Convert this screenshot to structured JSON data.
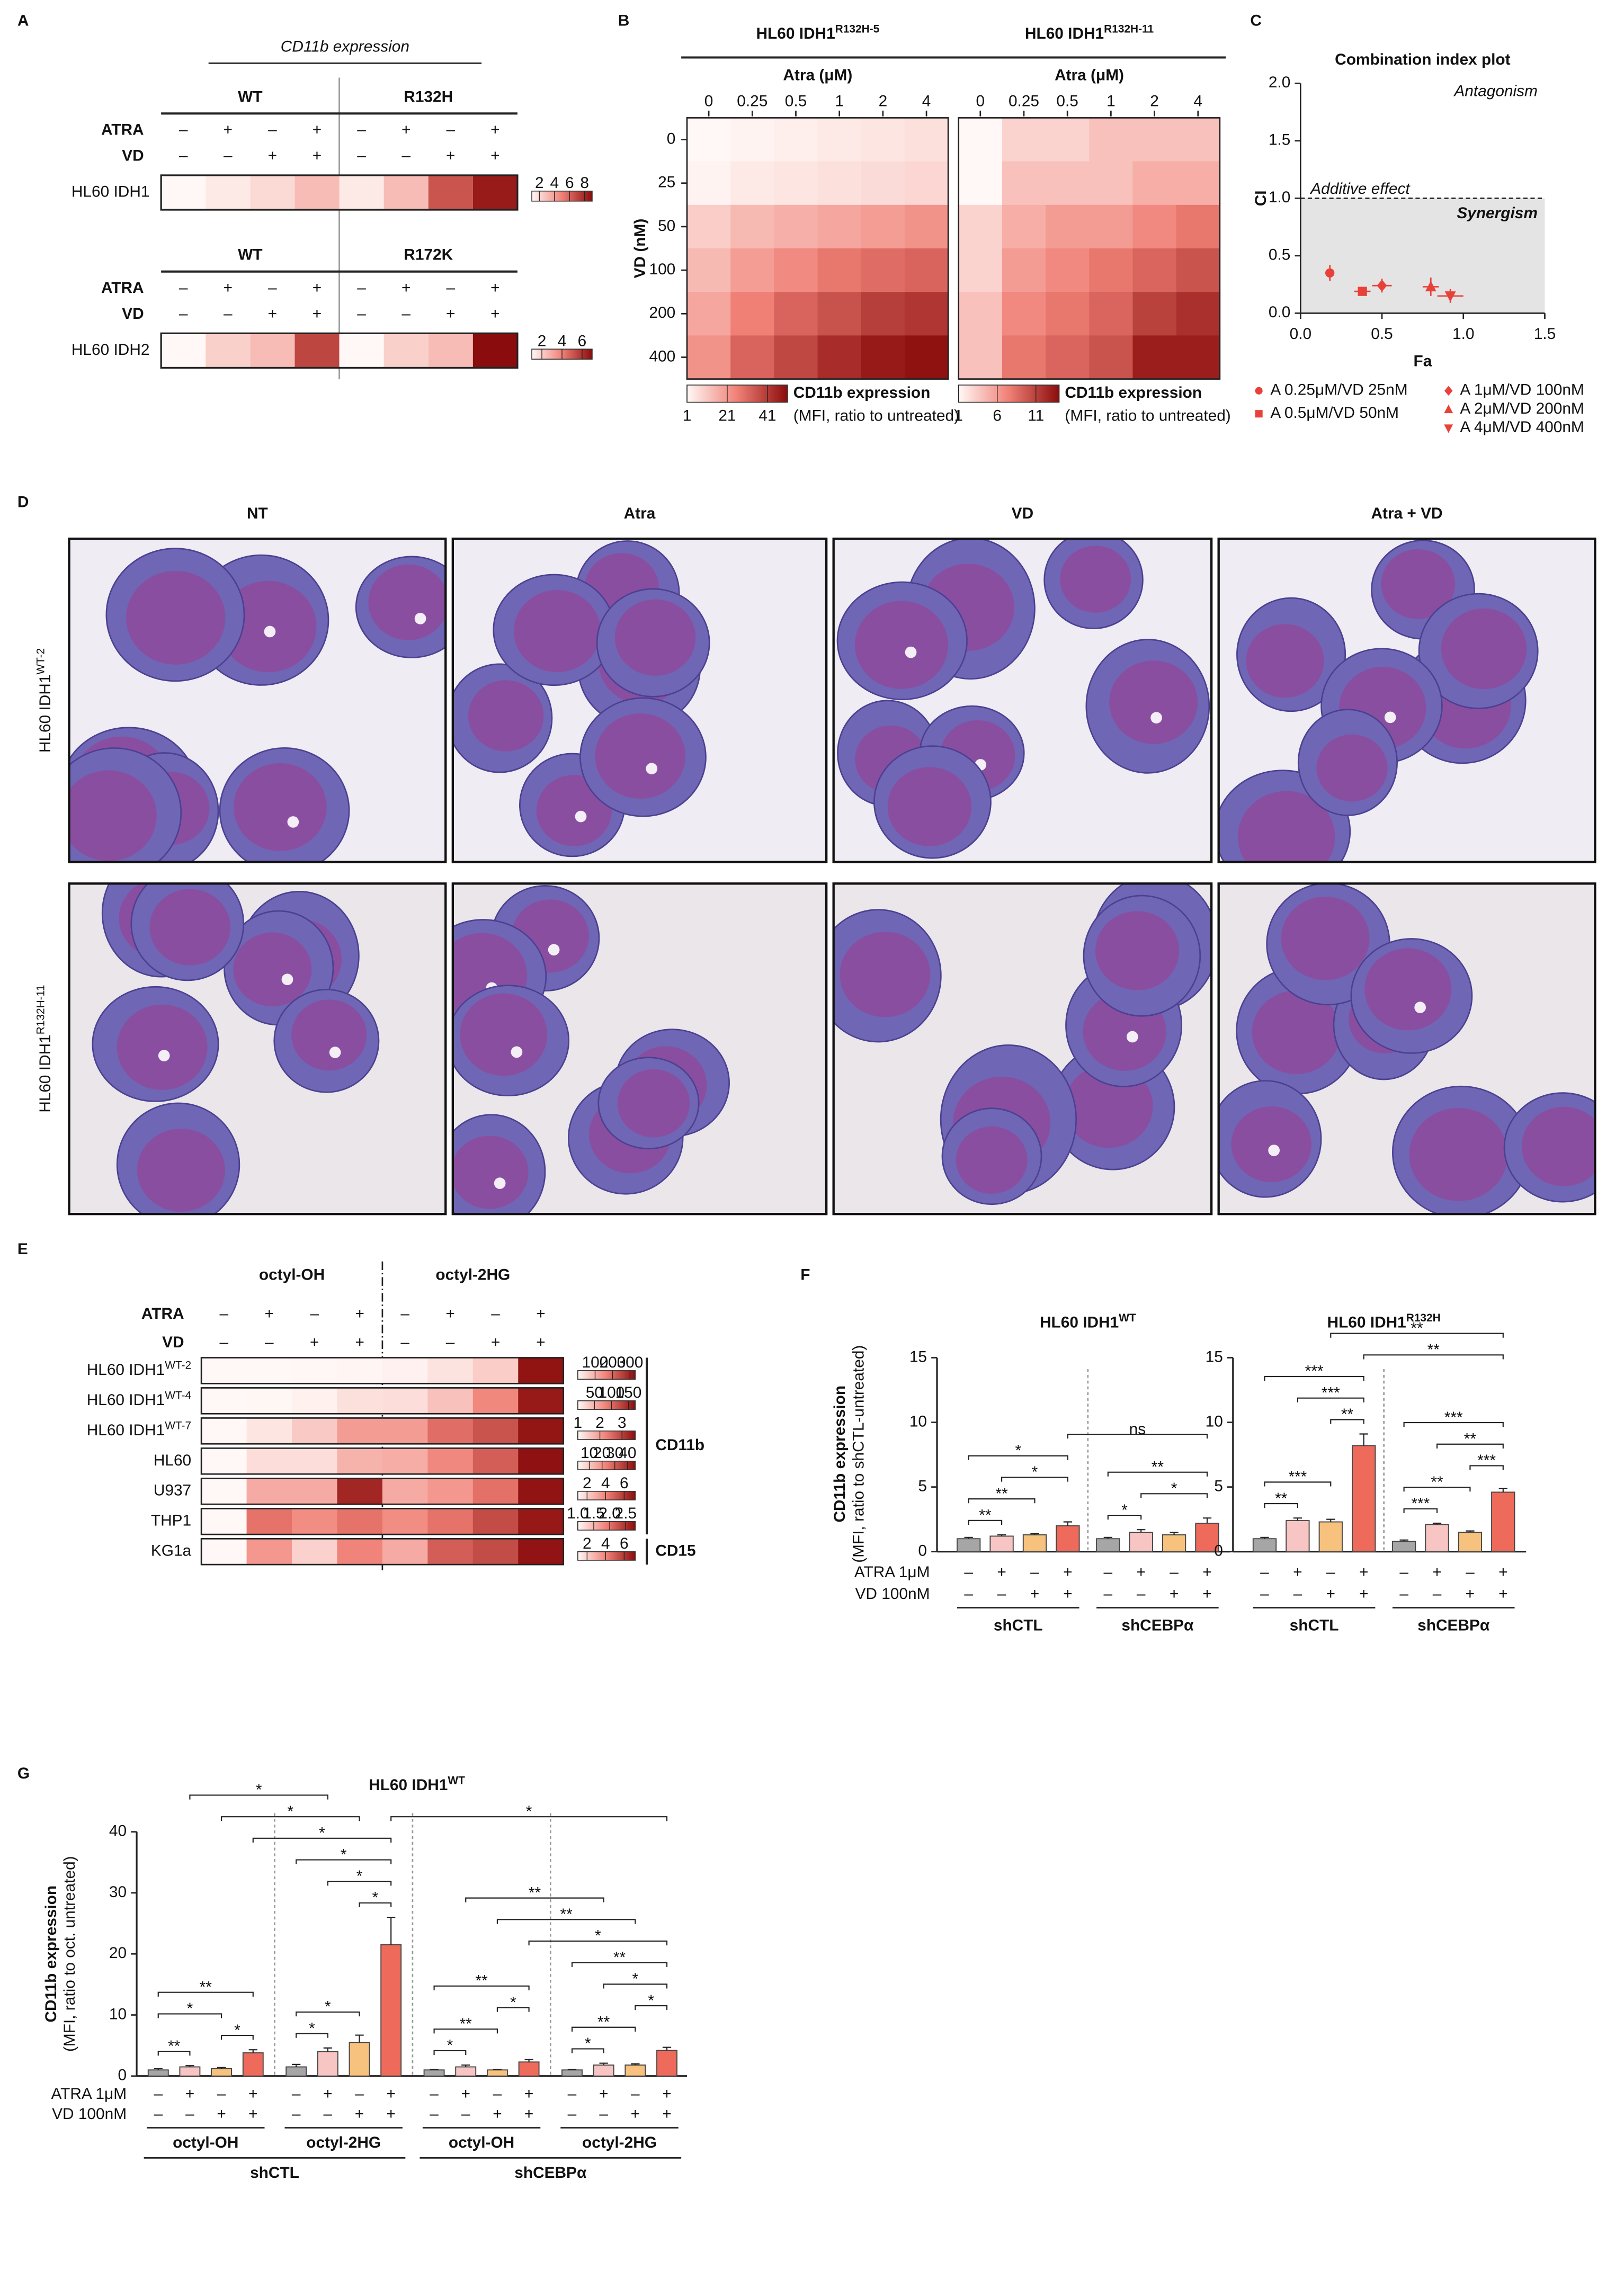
{
  "panel_letters": [
    "A",
    "B",
    "C",
    "D",
    "E",
    "F",
    "G"
  ],
  "panel_A": {
    "title": "CD11b expression",
    "blocks": [
      {
        "groups": [
          "WT",
          "R132H"
        ],
        "treatments": [
          {
            "label": "ATRA",
            "signs": [
              "–",
              "+",
              "–",
              "+",
              "–",
              "+",
              "–",
              "+"
            ]
          },
          {
            "label": "VD",
            "signs": [
              "–",
              "–",
              "+",
              "+",
              "–",
              "–",
              "+",
              "+"
            ]
          }
        ],
        "row_label": "HL60 IDH1",
        "values": [
          1,
          1.5,
          2,
          3,
          1.5,
          3,
          6.5,
          8.5
        ],
        "lim": [
          1,
          9
        ],
        "ticks": [
          2,
          4,
          6,
          8
        ]
      },
      {
        "groups": [
          "WT",
          "R172K"
        ],
        "treatments": [
          {
            "label": "ATRA",
            "signs": [
              "–",
              "+",
              "–",
              "+",
              "–",
              "+",
              "–",
              "+"
            ]
          },
          {
            "label": "VD",
            "signs": [
              "–",
              "–",
              "+",
              "+",
              "–",
              "–",
              "+",
              "+"
            ]
          }
        ],
        "row_label": "HL60 IDH2",
        "values": [
          1,
          2,
          2.5,
          5.5,
          1,
          2,
          2.5,
          7
        ],
        "lim": [
          1,
          7
        ],
        "ticks": [
          2,
          4,
          6
        ]
      }
    ]
  },
  "panel_B": {
    "x_label": "Atra (μM)",
    "y_label": "VD (nM)",
    "columns": [
      0,
      0.25,
      0.5,
      1,
      2,
      4
    ],
    "rows": [
      0,
      25,
      50,
      100,
      200,
      400
    ],
    "colorbar_title": "CD11b expression",
    "colorbar_subtitle": "(MFI, ratio to untreated)",
    "maps": [
      {
        "title": {
          "text": "HL60 IDH1",
          "sup": "R132H-5"
        },
        "lim": [
          1,
          51
        ],
        "ticks": [
          1,
          21,
          41
        ],
        "values": [
          [
            1,
            2,
            3,
            4,
            5,
            6
          ],
          [
            2,
            4,
            5,
            6,
            7,
            8
          ],
          [
            10,
            14,
            16,
            18,
            20,
            22
          ],
          [
            14,
            20,
            24,
            28,
            30,
            32
          ],
          [
            18,
            26,
            32,
            36,
            40,
            42
          ],
          [
            22,
            32,
            38,
            44,
            48,
            50
          ]
        ]
      },
      {
        "title": {
          "text": "HL60 IDH1",
          "sup": "R132H-11"
        },
        "lim": [
          1,
          14
        ],
        "ticks": [
          1,
          6,
          11
        ],
        "values": [
          [
            1,
            3,
            3,
            4,
            4,
            4
          ],
          [
            1,
            4,
            4,
            4,
            5,
            5
          ],
          [
            3,
            5,
            6,
            6,
            7,
            8
          ],
          [
            3,
            6,
            7,
            8,
            9,
            10
          ],
          [
            4,
            7,
            8,
            9,
            11,
            12
          ],
          [
            4,
            8,
            9,
            10,
            13,
            13
          ]
        ]
      }
    ]
  },
  "panel_C": {
    "type": "scatter",
    "title": "Combination index plot",
    "x_label": "Fa",
    "y_label": "CI",
    "xlim": [
      0,
      1.5
    ],
    "xticks": [
      {
        "value": 0,
        "label": "0.0"
      },
      0.5,
      {
        "value": 1,
        "label": "1.0"
      },
      1.5
    ],
    "ylim": [
      0,
      2
    ],
    "yticks": [
      {
        "value": 0,
        "label": "0.0"
      },
      0.5,
      {
        "value": 1,
        "label": "1.0"
      },
      1.5,
      {
        "value": 2,
        "label": "2.0"
      }
    ],
    "threshold": 1,
    "annotations": {
      "antagonism": "Antagonism",
      "additive": "Additive effect",
      "synergism": "Synergism"
    },
    "color": "#e8413a",
    "points": [
      {
        "name": "A 0.25μM/VD 25nM",
        "marker": "circle",
        "x": 0.18,
        "y": 0.35,
        "x_err": 0.02,
        "y_err": 0.07
      },
      {
        "name": "A 0.5μM/VD 50nM",
        "marker": "square",
        "x": 0.38,
        "y": 0.19,
        "x_err": 0.05,
        "y_err": 0.03
      },
      {
        "name": "A 1μM/VD 100nM",
        "marker": "diamond",
        "x": 0.5,
        "y": 0.24,
        "x_err": 0.06,
        "y_err": 0.06
      },
      {
        "name": "A 2μM/VD 200nM",
        "marker": "triangle-up",
        "x": 0.8,
        "y": 0.23,
        "x_err": 0.05,
        "y_err": 0.08
      },
      {
        "name": "A 4μM/VD 400nM",
        "marker": "triangle-down",
        "x": 0.92,
        "y": 0.15,
        "x_err": 0.08,
        "y_err": 0.06
      }
    ]
  },
  "panel_D": {
    "columns": [
      "NT",
      "Atra",
      "VD",
      "Atra + VD"
    ],
    "rows": [
      {
        "text": "HL60 IDH1",
        "sup": "WT-2"
      },
      {
        "text": "HL60 IDH1",
        "sup": "R132H-11"
      }
    ]
  },
  "panel_E": {
    "groups": [
      "octyl-OH",
      "octyl-2HG"
    ],
    "treatments": [
      {
        "label": "ATRA",
        "signs": [
          "–",
          "+",
          "–",
          "+",
          "–",
          "+",
          "–",
          "+"
        ]
      },
      {
        "label": "VD",
        "signs": [
          "–",
          "–",
          "+",
          "+",
          "–",
          "–",
          "+",
          "+"
        ]
      }
    ],
    "rows": [
      {
        "label": {
          "text": "HL60 IDH1",
          "sup": "WT-2"
        },
        "marker": "CD11b",
        "values": [
          1,
          1,
          2,
          5,
          10,
          30,
          60,
          320
        ],
        "lim": [
          1,
          330
        ],
        "ticks": [
          100,
          200,
          300
        ]
      },
      {
        "label": {
          "text": "HL60 IDH1",
          "sup": "WT-4"
        },
        "marker": "CD11b",
        "values": [
          1,
          2,
          6,
          18,
          20,
          40,
          80,
          160
        ],
        "lim": [
          1,
          170
        ],
        "ticks": [
          50,
          100,
          150
        ]
      },
      {
        "label": {
          "text": "HL60 IDH1",
          "sup": "WT-7"
        },
        "marker": "CD11b",
        "values": [
          1,
          1.2,
          1.5,
          2,
          2,
          2.5,
          2.8,
          3.5
        ],
        "lim": [
          1,
          3.6
        ],
        "ticks": [
          1,
          2,
          3
        ]
      },
      {
        "label": {
          "text": "HL60"
        },
        "marker": "CD11b",
        "values": [
          1,
          6,
          6,
          14,
          15,
          22,
          30,
          45
        ],
        "lim": [
          1,
          46
        ],
        "ticks": [
          10,
          20,
          30,
          40
        ]
      },
      {
        "label": {
          "text": "U937"
        },
        "marker": "CD11b",
        "values": [
          1,
          3,
          3,
          6.5,
          3,
          3.5,
          4.5,
          7
        ],
        "lim": [
          1,
          7.2
        ],
        "ticks": [
          2,
          4,
          6
        ]
      },
      {
        "label": {
          "text": "THP1"
        },
        "marker": "CD11b",
        "values": [
          1,
          2,
          1.8,
          2,
          1.8,
          2,
          2.3,
          2.7
        ],
        "lim": [
          1,
          2.8
        ],
        "ticks": [
          {
            "value": 1,
            "label": "1.0"
          },
          1.5,
          {
            "value": 2,
            "label": "2.0"
          },
          2.5
        ]
      },
      {
        "label": {
          "text": "KG1a"
        },
        "marker": "CD15",
        "values": [
          1,
          3.5,
          2,
          4,
          3,
          5,
          5.5,
          7
        ],
        "lim": [
          1,
          7.2
        ],
        "ticks": [
          2,
          4,
          6
        ]
      }
    ]
  },
  "panel_F": {
    "type": "bar",
    "y_label": [
      "CD11b expression",
      "(MFI, ratio to shCTL-untreated)"
    ],
    "treatments": [
      {
        "label": "ATRA 1μM",
        "signs": [
          "–",
          "+",
          "–",
          "+",
          "–",
          "+",
          "–",
          "+"
        ]
      },
      {
        "label": "VD 100nM",
        "signs": [
          "–",
          "–",
          "+",
          "+",
          "–",
          "–",
          "+",
          "+"
        ]
      }
    ],
    "groups": [
      "shCTL",
      "shCEBPα"
    ],
    "colors": [
      "#a6a6a6",
      "#f7c6c4",
      "#f6c27e",
      "#ee6b5b"
    ],
    "charts": [
      {
        "title": {
          "text": "HL60 IDH1",
          "sup": "WT"
        },
        "ylim": [
          0,
          15
        ],
        "yticks": [
          0,
          5,
          10,
          15
        ],
        "values": [
          1,
          1.2,
          1.3,
          2.0,
          1.0,
          1.5,
          1.3,
          2.2
        ],
        "errors": [
          0.1,
          0.1,
          0.1,
          0.3,
          0.1,
          0.2,
          0.2,
          0.4
        ],
        "brackets": [
          {
            "between": [
              0,
              1
            ],
            "label": "**"
          },
          {
            "between": [
              4,
              5
            ],
            "label": "*"
          },
          {
            "between": [
              0,
              2
            ],
            "label": "**"
          },
          {
            "between": [
              5,
              7
            ],
            "label": "*"
          },
          {
            "between": [
              1,
              3
            ],
            "label": "*"
          },
          {
            "between": [
              4,
              7
            ],
            "label": "**"
          },
          {
            "between": [
              0,
              3
            ],
            "label": "*"
          },
          {
            "between": [
              3,
              7
            ],
            "label": "ns"
          }
        ]
      },
      {
        "title": {
          "text": "HL60 IDH1",
          "sup": "R132H"
        },
        "ylim": [
          0,
          15
        ],
        "yticks": [
          0,
          5,
          10,
          15
        ],
        "values": [
          1,
          2.4,
          2.3,
          8.2,
          0.8,
          2.1,
          1.5,
          4.6
        ],
        "errors": [
          0.1,
          0.2,
          0.2,
          0.9,
          0.1,
          0.1,
          0.1,
          0.3
        ],
        "brackets": [
          {
            "between": [
              0,
              1
            ],
            "label": "**"
          },
          {
            "between": [
              0,
              2
            ],
            "label": "***"
          },
          {
            "between": [
              4,
              5
            ],
            "label": "***"
          },
          {
            "between": [
              4,
              6
            ],
            "label": "**"
          },
          {
            "between": [
              6,
              7
            ],
            "label": "***"
          },
          {
            "between": [
              5,
              7
            ],
            "label": "**"
          },
          {
            "between": [
              4,
              7
            ],
            "label": "***"
          },
          {
            "between": [
              2,
              3
            ],
            "label": "**"
          },
          {
            "between": [
              1,
              3
            ],
            "label": "***"
          },
          {
            "between": [
              0,
              3
            ],
            "label": "***"
          },
          {
            "between": [
              3,
              7
            ],
            "label": "**"
          },
          {
            "between": [
              2,
              7
            ],
            "label": "**"
          }
        ]
      }
    ]
  },
  "panel_G": {
    "type": "bar",
    "title": {
      "text": "HL60 IDH1",
      "sup": "WT"
    },
    "y_label": [
      "CD11b expression",
      "(MFI, ratio to oct. untreated)"
    ],
    "ylim": [
      0,
      40
    ],
    "yticks": [
      0,
      10,
      20,
      30,
      40
    ],
    "treatments": [
      {
        "label": "ATRA 1μM",
        "signs": [
          "–",
          "+",
          "–",
          "+",
          "–",
          "+",
          "–",
          "+",
          "–",
          "+",
          "–",
          "+",
          "–",
          "+",
          "–",
          "+"
        ]
      },
      {
        "label": "VD 100nM",
        "signs": [
          "–",
          "–",
          "+",
          "+",
          "–",
          "–",
          "+",
          "+",
          "–",
          "–",
          "+",
          "+",
          "–",
          "–",
          "+",
          "+"
        ]
      }
    ],
    "subgroups": [
      "octyl-OH",
      "octyl-2HG",
      "octyl-OH",
      "octyl-2HG"
    ],
    "groups": [
      "shCTL",
      "shCEBPα"
    ],
    "colors": [
      "#a6a6a6",
      "#f7c6c4",
      "#f6c27e",
      "#ee6b5b"
    ],
    "values": [
      1,
      1.5,
      1.2,
      3.8,
      1.5,
      4,
      5.5,
      21.5,
      1,
      1.5,
      1,
      2.3,
      1,
      1.8,
      1.8,
      4.2
    ],
    "errors": [
      0.2,
      0.2,
      0.2,
      0.5,
      0.4,
      0.6,
      1.2,
      4.5,
      0.1,
      0.3,
      0.1,
      0.4,
      0.1,
      0.3,
      0.2,
      0.5
    ],
    "brackets": [
      {
        "between": [
          0,
          1
        ],
        "label": "**"
      },
      {
        "between": [
          2,
          3
        ],
        "label": "*"
      },
      {
        "between": [
          0,
          2
        ],
        "label": "*"
      },
      {
        "between": [
          0,
          3
        ],
        "label": "**"
      },
      {
        "between": [
          4,
          5
        ],
        "label": "*"
      },
      {
        "between": [
          4,
          6
        ],
        "label": "*"
      },
      {
        "between": [
          6,
          7
        ],
        "label": "*"
      },
      {
        "between": [
          5,
          7
        ],
        "label": "*"
      },
      {
        "between": [
          4,
          7
        ],
        "label": "*"
      },
      {
        "between": [
          8,
          9
        ],
        "label": "*"
      },
      {
        "between": [
          8,
          10
        ],
        "label": "**"
      },
      {
        "between": [
          10,
          11
        ],
        "label": "*"
      },
      {
        "between": [
          8,
          11
        ],
        "label": "**"
      },
      {
        "between": [
          12,
          13
        ],
        "label": "*"
      },
      {
        "between": [
          12,
          14
        ],
        "label": "**"
      },
      {
        "between": [
          14,
          15
        ],
        "label": "*"
      },
      {
        "between": [
          13,
          15
        ],
        "label": "*"
      },
      {
        "between": [
          12,
          15
        ],
        "label": "**"
      },
      {
        "between": [
          3,
          7
        ],
        "label": "*"
      },
      {
        "between": [
          2,
          6
        ],
        "label": "*"
      },
      {
        "between": [
          1,
          5
        ],
        "label": "*"
      },
      {
        "between": [
          11,
          15
        ],
        "label": "*"
      },
      {
        "between": [
          10,
          14
        ],
        "label": "**"
      },
      {
        "between": [
          9,
          13
        ],
        "label": "**"
      },
      {
        "between": [
          7,
          15
        ],
        "label": "*"
      }
    ]
  }
}
